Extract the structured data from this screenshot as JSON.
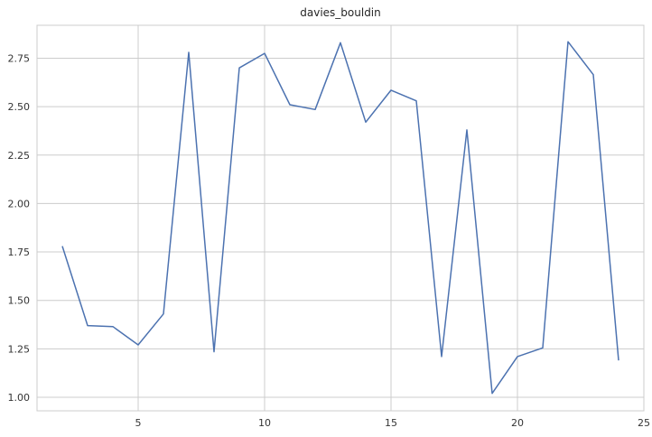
{
  "chart_data": {
    "type": "line",
    "title": "davies_bouldin",
    "xlabel": "",
    "ylabel": "",
    "xlim": [
      1.0,
      25.0
    ],
    "ylim": [
      0.93,
      2.92
    ],
    "xticks": [
      5,
      10,
      15,
      20,
      25
    ],
    "xtick_labels": [
      "5",
      "10",
      "15",
      "20",
      "25"
    ],
    "yticks": [
      1.0,
      1.25,
      1.5,
      1.75,
      2.0,
      2.25,
      2.5,
      2.75
    ],
    "ytick_labels": [
      "1.00",
      "1.25",
      "1.50",
      "1.75",
      "2.00",
      "2.25",
      "2.50",
      "2.75"
    ],
    "grid": true,
    "series": [
      {
        "color": "#4c72b0",
        "x": [
          2,
          3,
          4,
          5,
          6,
          7,
          8,
          9,
          10,
          11,
          12,
          13,
          14,
          15,
          16,
          17,
          18,
          19,
          20,
          21,
          22,
          23,
          24
        ],
        "values": [
          1.78,
          1.37,
          1.365,
          1.27,
          1.43,
          2.78,
          1.235,
          2.7,
          2.775,
          2.51,
          2.485,
          2.83,
          2.42,
          2.585,
          2.53,
          1.21,
          2.38,
          1.02,
          1.21,
          1.255,
          2.835,
          2.665,
          1.19
        ]
      }
    ]
  }
}
